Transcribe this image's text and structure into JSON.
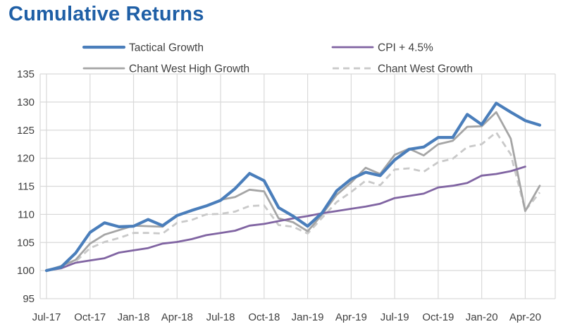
{
  "chart_data": {
    "type": "line",
    "title": "Cumulative Returns",
    "xlabel": "",
    "ylabel": "",
    "ylim": [
      95,
      135
    ],
    "yticks": [
      95,
      100,
      105,
      110,
      115,
      120,
      125,
      130,
      135
    ],
    "x_tick_labels": [
      "Jul-17",
      "Oct-17",
      "Jan-18",
      "Apr-18",
      "Jul-18",
      "Oct-18",
      "Jan-19",
      "Apr-19",
      "Jul-19",
      "Oct-19",
      "Jan-20",
      "Apr-20"
    ],
    "x_tick_month_index": [
      0,
      3,
      6,
      9,
      12,
      15,
      18,
      21,
      24,
      27,
      30,
      33
    ],
    "x_range": [
      0,
      34
    ],
    "grid": true,
    "legend_position": "top",
    "series": [
      {
        "name": "Tactical Growth",
        "color": "#4a7ebb",
        "dash": "solid",
        "weight": "thick",
        "values": [
          100,
          100.6,
          103.1,
          106.8,
          108.5,
          107.8,
          107.9,
          109.1,
          108.0,
          109.8,
          110.7,
          111.5,
          112.5,
          114.6,
          117.3,
          116.0,
          111.2,
          109.7,
          107.9,
          110.3,
          114.2,
          116.3,
          117.5,
          116.9,
          119.7,
          121.6,
          122.0,
          123.7,
          123.7,
          127.8,
          126.0,
          129.8,
          128.2,
          126.7,
          125.9
        ]
      },
      {
        "name": "CPI + 4.5%",
        "color": "#8064a2",
        "dash": "solid",
        "weight": "medium",
        "values": [
          100,
          100.4,
          101.4,
          101.8,
          102.2,
          103.2,
          103.6,
          104.0,
          104.8,
          105.1,
          105.6,
          106.3,
          106.7,
          107.1,
          108.0,
          108.3,
          108.8,
          109.3,
          109.7,
          110.2,
          110.6,
          111.0,
          111.4,
          111.9,
          112.9,
          113.3,
          113.7,
          114.8,
          115.1,
          115.6,
          116.9,
          117.2,
          117.7,
          118.5,
          null
        ]
      },
      {
        "name": "Chant West High Growth",
        "color": "#a5a5a5",
        "dash": "solid",
        "weight": "medium",
        "values": [
          100,
          100.8,
          101.9,
          104.8,
          106.4,
          107.2,
          108.0,
          107.9,
          107.8,
          109.9,
          110.6,
          111.5,
          112.6,
          113.1,
          114.4,
          114.1,
          109.3,
          108.6,
          107.0,
          110.0,
          113.5,
          115.7,
          118.3,
          117.2,
          120.6,
          121.7,
          120.5,
          122.5,
          123.1,
          125.6,
          125.7,
          128.2,
          123.5,
          110.6,
          115.1
        ]
      },
      {
        "name": "Chant West Growth",
        "color": "#c9c9c9",
        "dash": "dashed",
        "weight": "medium",
        "values": [
          100,
          100.6,
          101.6,
          104.0,
          105.1,
          105.8,
          106.7,
          106.7,
          106.6,
          108.5,
          109.0,
          110.0,
          110.1,
          110.5,
          111.5,
          111.6,
          108.1,
          107.8,
          106.6,
          109.4,
          112.2,
          114.0,
          116.0,
          115.2,
          118.0,
          118.2,
          117.6,
          119.3,
          119.9,
          122.0,
          122.5,
          124.6,
          120.7,
          110.7,
          113.9
        ]
      }
    ]
  }
}
